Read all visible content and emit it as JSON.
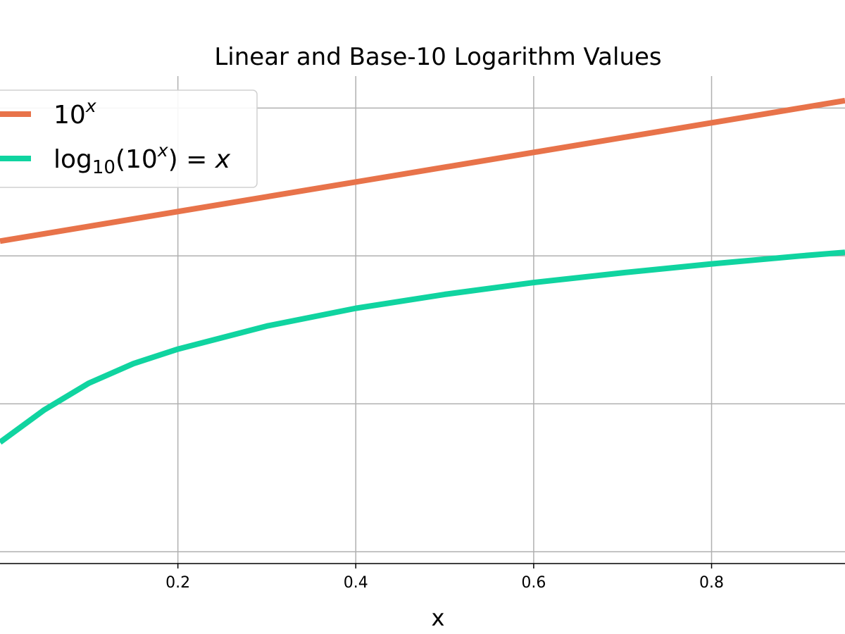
{
  "chart_data": {
    "type": "line",
    "title": "Linear and Base-10 Logarithm Values",
    "xlabel": "x",
    "ylabel": "",
    "xlim": [
      0.0,
      0.95
    ],
    "ylim": [
      -0.54,
      1.108
    ],
    "x_ticks": [
      0.2,
      0.4,
      0.6,
      0.8
    ],
    "x_tick_labels": [
      "0.2",
      "0.4",
      "0.6",
      "0.8"
    ],
    "y_gridlines": [
      -0.5,
      0.0,
      0.5,
      1.0
    ],
    "grid": true,
    "legend_position": "upper left",
    "series": [
      {
        "name": "10^x",
        "legend_parts": {
          "base": "10",
          "sup": "x"
        },
        "color": "#E8734A",
        "x": [
          0.0,
          0.1,
          0.2,
          0.3,
          0.4,
          0.5,
          0.6,
          0.7,
          0.8,
          0.9,
          0.95
        ],
        "y": [
          0.55,
          0.6,
          0.65,
          0.7,
          0.75,
          0.8,
          0.85,
          0.9,
          0.95,
          1.0,
          1.025
        ]
      },
      {
        "name": "log10(10^x) = x",
        "legend_parts": {
          "func": "log",
          "sub": "10",
          "arg_open": "(10",
          "sup": "x",
          "arg_close": ")",
          "eq": " = ",
          "rhs": "x"
        },
        "color": "#10D4A0",
        "x": [
          0.0,
          0.05,
          0.1,
          0.15,
          0.2,
          0.3,
          0.4,
          0.5,
          0.6,
          0.7,
          0.8,
          0.9,
          0.95
        ],
        "y": [
          -0.13,
          -0.02,
          0.07,
          0.136,
          0.185,
          0.263,
          0.323,
          0.37,
          0.41,
          0.443,
          0.473,
          0.5,
          0.512
        ]
      }
    ]
  }
}
